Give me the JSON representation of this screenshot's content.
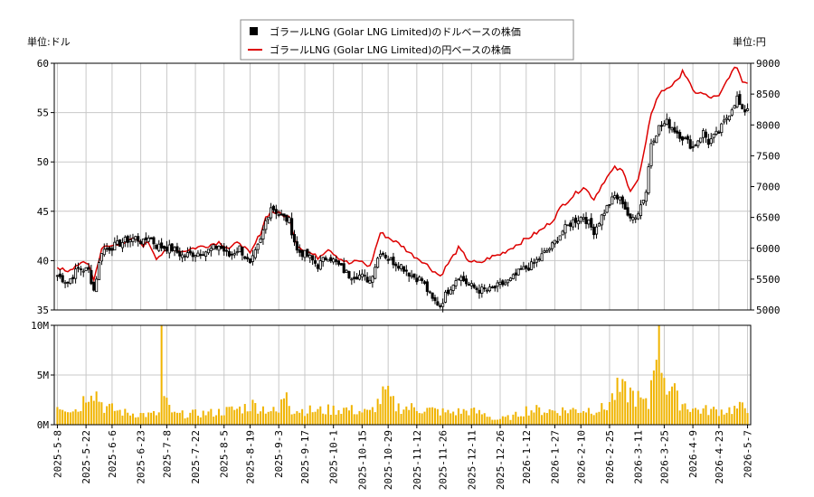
{
  "chart_data": {
    "type": "candlestick+line+bar",
    "legend": [
      {
        "name": "ゴラールLNG (Golar LNG Limited)のドルベースの株価",
        "color": "#000000",
        "marker": "square"
      },
      {
        "name": "ゴラールLNG (Golar LNG Limited)の円ベースの株価",
        "color": "#dd0000",
        "marker": "line"
      }
    ],
    "legend_position": "top-center",
    "left_unit": "単位:ドル",
    "right_unit": "単位:円",
    "price_axis": {
      "ylim": [
        35,
        60
      ],
      "ticks": [
        "35",
        "40",
        "45",
        "50",
        "55",
        "60"
      ]
    },
    "yen_axis": {
      "ylim": [
        5000,
        9000
      ],
      "ticks": [
        "5000",
        "5500",
        "6000",
        "6500",
        "7000",
        "7500",
        "8000",
        "8500",
        "9000"
      ]
    },
    "volume_axis": {
      "ylim": [
        0,
        10000000
      ],
      "ticks": [
        "0M",
        "5M",
        "10M"
      ]
    },
    "grid": true,
    "x_ticks": [
      "2025-5-8",
      "2025-5-22",
      "2025-6-6",
      "2025-6-23",
      "2025-7-8",
      "2025-7-22",
      "2025-8-5",
      "2025-8-19",
      "2025-9-3",
      "2025-9-17",
      "2025-10-1",
      "2025-10-15",
      "2025-10-29",
      "2025-11-12",
      "2025-11-26",
      "2025-12-11",
      "2025-12-26",
      "2026-1-12",
      "2026-1-27",
      "2026-2-10",
      "2026-2-25",
      "2026-3-11",
      "2026-3-25",
      "2026-4-9",
      "2026-4-23",
      "2026-5-7"
    ],
    "close_keypoints": [
      [
        0,
        38.5
      ],
      [
        4,
        37.8
      ],
      [
        8,
        39.2
      ],
      [
        12,
        39.0
      ],
      [
        14,
        37.0
      ],
      [
        17,
        41.0
      ],
      [
        22,
        41.5
      ],
      [
        26,
        42.0
      ],
      [
        30,
        42.3
      ],
      [
        33,
        41.8
      ],
      [
        35,
        42.5
      ],
      [
        38,
        41.5
      ],
      [
        44,
        41.2
      ],
      [
        48,
        40.5
      ],
      [
        52,
        40.7
      ],
      [
        58,
        41.0
      ],
      [
        62,
        41.5
      ],
      [
        66,
        40.5
      ],
      [
        70,
        41.3
      ],
      [
        74,
        39.5
      ],
      [
        78,
        42.0
      ],
      [
        80,
        44.0
      ],
      [
        82,
        45.5
      ],
      [
        86,
        44.5
      ],
      [
        89,
        44.0
      ],
      [
        92,
        41.0
      ],
      [
        96,
        40.5
      ],
      [
        100,
        39.5
      ],
      [
        104,
        40.5
      ],
      [
        108,
        39.5
      ],
      [
        112,
        38.5
      ],
      [
        116,
        38.5
      ],
      [
        120,
        38.0
      ],
      [
        124,
        41.0
      ],
      [
        128,
        40.0
      ],
      [
        132,
        39.5
      ],
      [
        136,
        38.5
      ],
      [
        140,
        38.0
      ],
      [
        144,
        36.0
      ],
      [
        147,
        35.5
      ],
      [
        150,
        37.0
      ],
      [
        154,
        38.5
      ],
      [
        158,
        37.5
      ],
      [
        162,
        37.0
      ],
      [
        166,
        37.0
      ],
      [
        170,
        37.5
      ],
      [
        174,
        38.0
      ],
      [
        178,
        39.0
      ],
      [
        182,
        39.5
      ],
      [
        186,
        40.5
      ],
      [
        190,
        41.5
      ],
      [
        194,
        43.0
      ],
      [
        198,
        44.0
      ],
      [
        202,
        44.5
      ],
      [
        206,
        43.0
      ],
      [
        210,
        45.0
      ],
      [
        214,
        46.5
      ],
      [
        217,
        46.0
      ],
      [
        220,
        44.0
      ],
      [
        223,
        45.0
      ],
      [
        226,
        47.0
      ],
      [
        228,
        52.0
      ],
      [
        231,
        53.5
      ],
      [
        234,
        54.0
      ],
      [
        238,
        53.0
      ],
      [
        240,
        52.5
      ],
      [
        244,
        51.5
      ],
      [
        248,
        53.0
      ],
      [
        250,
        52.0
      ],
      [
        254,
        53.0
      ],
      [
        258,
        55.0
      ],
      [
        261,
        56.5
      ],
      [
        263,
        55.0
      ],
      [
        265,
        55.5
      ]
    ],
    "yen_keypoints": [
      [
        0,
        5700
      ],
      [
        4,
        5600
      ],
      [
        8,
        5750
      ],
      [
        12,
        5750
      ],
      [
        14,
        5480
      ],
      [
        17,
        6000
      ],
      [
        22,
        6050
      ],
      [
        26,
        6100
      ],
      [
        30,
        6150
      ],
      [
        33,
        6050
      ],
      [
        35,
        6100
      ],
      [
        38,
        5850
      ],
      [
        44,
        6000
      ],
      [
        48,
        5950
      ],
      [
        52,
        6000
      ],
      [
        58,
        6050
      ],
      [
        62,
        6100
      ],
      [
        66,
        6000
      ],
      [
        70,
        6100
      ],
      [
        74,
        5900
      ],
      [
        78,
        6250
      ],
      [
        80,
        6500
      ],
      [
        82,
        6600
      ],
      [
        86,
        6550
      ],
      [
        89,
        6500
      ],
      [
        92,
        6050
      ],
      [
        96,
        5950
      ],
      [
        100,
        5850
      ],
      [
        104,
        6000
      ],
      [
        108,
        5850
      ],
      [
        112,
        5750
      ],
      [
        116,
        5800
      ],
      [
        120,
        5700
      ],
      [
        124,
        6250
      ],
      [
        128,
        6150
      ],
      [
        132,
        6050
      ],
      [
        136,
        5900
      ],
      [
        140,
        5800
      ],
      [
        144,
        5650
      ],
      [
        147,
        5550
      ],
      [
        150,
        5750
      ],
      [
        154,
        6000
      ],
      [
        158,
        5800
      ],
      [
        162,
        5750
      ],
      [
        166,
        5850
      ],
      [
        170,
        5900
      ],
      [
        174,
        6000
      ],
      [
        178,
        6100
      ],
      [
        182,
        6200
      ],
      [
        186,
        6300
      ],
      [
        190,
        6450
      ],
      [
        194,
        6700
      ],
      [
        198,
        6850
      ],
      [
        202,
        7000
      ],
      [
        206,
        6800
      ],
      [
        210,
        7100
      ],
      [
        214,
        7300
      ],
      [
        217,
        7250
      ],
      [
        220,
        6950
      ],
      [
        223,
        7100
      ],
      [
        226,
        7700
      ],
      [
        228,
        8200
      ],
      [
        231,
        8500
      ],
      [
        234,
        8600
      ],
      [
        238,
        8700
      ],
      [
        240,
        8900
      ],
      [
        244,
        8550
      ],
      [
        248,
        8500
      ],
      [
        250,
        8450
      ],
      [
        254,
        8450
      ],
      [
        258,
        8800
      ],
      [
        261,
        8950
      ],
      [
        263,
        8700
      ],
      [
        265,
        8700
      ]
    ],
    "volume_keypoints": [
      [
        0,
        2000000
      ],
      [
        8,
        1500000
      ],
      [
        13,
        4000000
      ],
      [
        18,
        1800000
      ],
      [
        26,
        1200000
      ],
      [
        35,
        1000000
      ],
      [
        39,
        1100000
      ],
      [
        40,
        10800000
      ],
      [
        41,
        2400000
      ],
      [
        45,
        1000000
      ],
      [
        60,
        1200000
      ],
      [
        70,
        1600000
      ],
      [
        75,
        2000000
      ],
      [
        85,
        1200000
      ],
      [
        88,
        3900000
      ],
      [
        90,
        1500000
      ],
      [
        100,
        1400000
      ],
      [
        110,
        1600000
      ],
      [
        120,
        1200000
      ],
      [
        126,
        3200000
      ],
      [
        130,
        1800000
      ],
      [
        140,
        1600000
      ],
      [
        150,
        1200000
      ],
      [
        158,
        1400000
      ],
      [
        165,
        1000000
      ],
      [
        168,
        500000
      ],
      [
        175,
        800000
      ],
      [
        180,
        1500000
      ],
      [
        190,
        1400000
      ],
      [
        200,
        1500000
      ],
      [
        210,
        1600000
      ],
      [
        215,
        3400000
      ],
      [
        220,
        3200000
      ],
      [
        227,
        1800000
      ],
      [
        230,
        9600000
      ],
      [
        232,
        6700000
      ],
      [
        234,
        4000000
      ],
      [
        236,
        3800000
      ],
      [
        238,
        2500000
      ],
      [
        245,
        1500000
      ],
      [
        255,
        1400000
      ],
      [
        265,
        1800000
      ]
    ],
    "n_sessions": 266
  }
}
